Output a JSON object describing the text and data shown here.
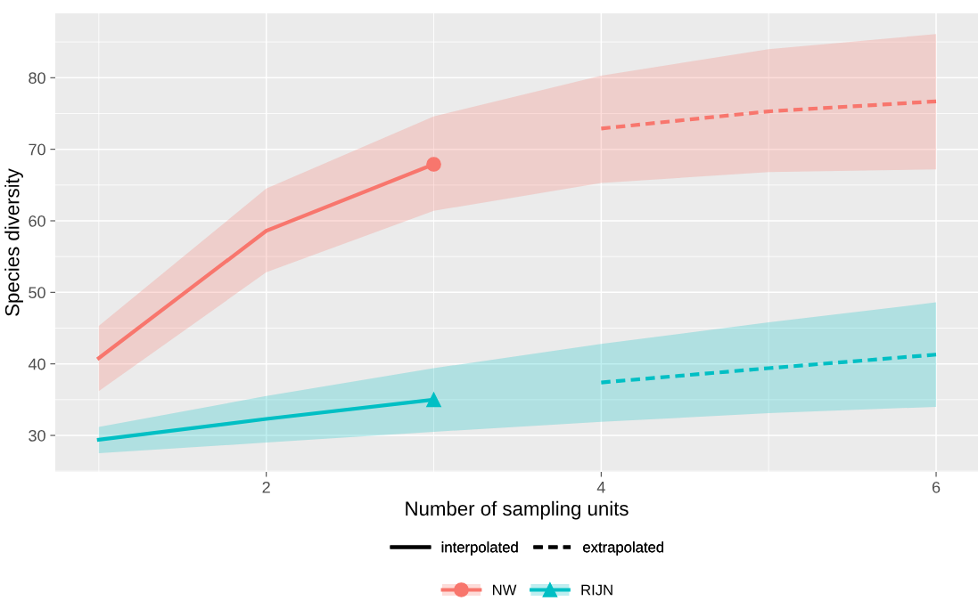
{
  "chart_data": {
    "type": "line",
    "xlabel": "Number of sampling units",
    "ylabel": "Species diversity",
    "xlim": [
      0.74,
      6.25
    ],
    "ylim": [
      24.9,
      89.0
    ],
    "xticks": [
      2,
      4,
      6
    ],
    "yticks": [
      30,
      40,
      50,
      60,
      70,
      80
    ],
    "grid": true,
    "legend": "bottom",
    "annotations": [
      "interpolated",
      "extrapolated"
    ],
    "series": [
      {
        "name": "NW",
        "color": "#f8766d",
        "x": [
          1,
          2,
          3
        ],
        "values": [
          40.8,
          58.6,
          67.9
        ],
        "lower": [
          36.2,
          52.8,
          61.4
        ],
        "upper": [
          45.3,
          64.5,
          74.6
        ],
        "line_style": "solid"
      },
      {
        "name": "RIJN",
        "color": "#00bfc4",
        "x": [
          1,
          2,
          3
        ],
        "values": [
          29.4,
          32.3,
          35.0
        ],
        "lower": [
          27.5,
          29.0,
          30.5
        ],
        "upper": [
          31.2,
          35.5,
          39.4
        ],
        "line_style": "solid"
      },
      {
        "type": "scatter",
        "color": "#f8766d",
        "x": [
          3
        ],
        "values": [
          67.9
        ],
        "marker": "circle"
      },
      {
        "type": "scatter",
        "color": "#00bfc4",
        "x": [
          3
        ],
        "values": [
          35.0
        ],
        "marker": "triangle"
      },
      {
        "color": "#f8766d",
        "x": [
          3,
          4,
          5,
          6
        ],
        "values": [
          null,
          72.9,
          75.3,
          76.7
        ],
        "lower": [
          61.4,
          65.3,
          66.8,
          67.2
        ],
        "upper": [
          74.6,
          80.3,
          84.0,
          86.1
        ],
        "line_style": "dashed"
      },
      {
        "color": "#00bfc4",
        "x": [
          3,
          4,
          5,
          6
        ],
        "values": [
          null,
          37.4,
          39.4,
          41.3
        ],
        "lower": [
          30.5,
          31.9,
          33.1,
          34.0
        ],
        "upper": [
          39.4,
          42.8,
          45.8,
          48.6
        ],
        "line_style": "dashed"
      }
    ]
  }
}
